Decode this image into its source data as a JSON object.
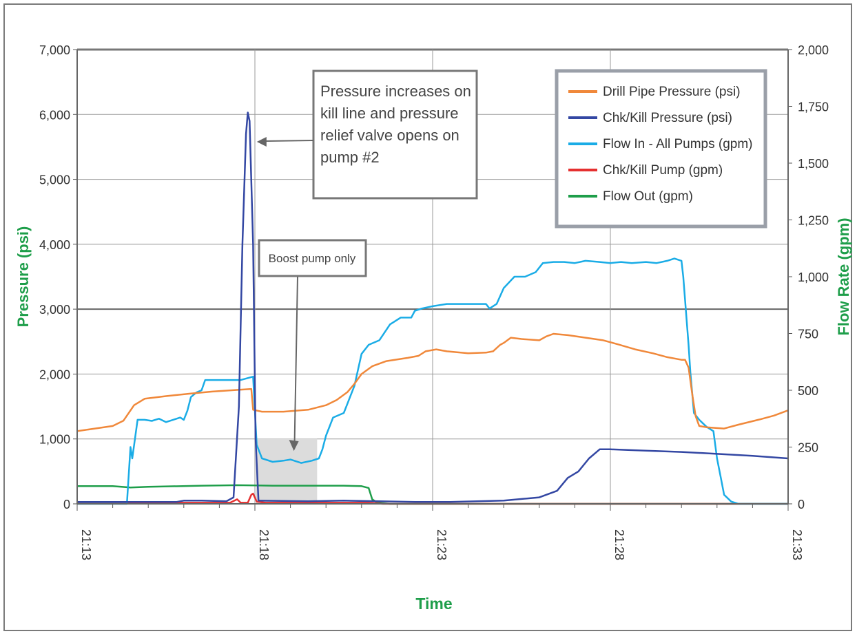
{
  "chart_data": {
    "type": "line",
    "title": "",
    "xlabel": "Time",
    "ylabel_left": "Pressure (psi)",
    "ylabel_right": "Flow Rate (gpm)",
    "x_ticks": [
      "21:13",
      "21:18",
      "21:23",
      "21:28",
      "21:33"
    ],
    "x_range_minutes": [
      0,
      20
    ],
    "left_axis": {
      "ylim": [
        0,
        7000
      ],
      "ticks": [
        "0",
        "1,000",
        "2,000",
        "3,000",
        "4,000",
        "5,000",
        "6,000",
        "7,000"
      ]
    },
    "right_axis": {
      "ylim": [
        0,
        2000
      ],
      "ticks": [
        "0",
        "250",
        "500",
        "750",
        "1,000",
        "1,250",
        "1,500",
        "1,750",
        "2,000"
      ]
    },
    "grid": true,
    "legend_position": "top-right",
    "series": [
      {
        "name": "Drill Pipe Pressure (psi)",
        "axis": "left",
        "color": "#f0883a",
        "points": [
          [
            0,
            1120
          ],
          [
            0.5,
            1160
          ],
          [
            1.0,
            1200
          ],
          [
            1.3,
            1280
          ],
          [
            1.6,
            1520
          ],
          [
            1.9,
            1620
          ],
          [
            2.5,
            1660
          ],
          [
            3.2,
            1700
          ],
          [
            3.8,
            1730
          ],
          [
            4.6,
            1760
          ],
          [
            4.9,
            1770
          ],
          [
            4.95,
            1450
          ],
          [
            5.2,
            1420
          ],
          [
            5.8,
            1420
          ],
          [
            6.5,
            1450
          ],
          [
            7.0,
            1520
          ],
          [
            7.3,
            1600
          ],
          [
            7.6,
            1720
          ],
          [
            7.8,
            1850
          ],
          [
            8.0,
            2000
          ],
          [
            8.3,
            2120
          ],
          [
            8.7,
            2200
          ],
          [
            9.3,
            2250
          ],
          [
            9.6,
            2280
          ],
          [
            9.8,
            2350
          ],
          [
            10.1,
            2380
          ],
          [
            10.4,
            2350
          ],
          [
            11.0,
            2320
          ],
          [
            11.5,
            2330
          ],
          [
            11.7,
            2350
          ],
          [
            11.9,
            2450
          ],
          [
            12.0,
            2480
          ],
          [
            12.2,
            2560
          ],
          [
            12.5,
            2540
          ],
          [
            13.0,
            2520
          ],
          [
            13.2,
            2580
          ],
          [
            13.4,
            2620
          ],
          [
            13.8,
            2600
          ],
          [
            14.3,
            2560
          ],
          [
            14.8,
            2520
          ],
          [
            15.2,
            2460
          ],
          [
            15.7,
            2380
          ],
          [
            16.2,
            2320
          ],
          [
            16.6,
            2260
          ],
          [
            17.0,
            2220
          ],
          [
            17.1,
            2220
          ],
          [
            17.2,
            2100
          ],
          [
            17.3,
            1700
          ],
          [
            17.4,
            1350
          ],
          [
            17.5,
            1200
          ],
          [
            17.7,
            1180
          ],
          [
            18.2,
            1160
          ],
          [
            18.6,
            1220
          ],
          [
            19.2,
            1300
          ],
          [
            19.6,
            1360
          ],
          [
            20,
            1440
          ]
        ]
      },
      {
        "name": "Chk/Kill Pressure (psi)",
        "axis": "left",
        "color": "#3347a3",
        "points": [
          [
            0,
            30
          ],
          [
            2.8,
            30
          ],
          [
            3.0,
            50
          ],
          [
            3.5,
            50
          ],
          [
            4.2,
            40
          ],
          [
            4.4,
            100
          ],
          [
            4.55,
            1500
          ],
          [
            4.65,
            4000
          ],
          [
            4.75,
            5700
          ],
          [
            4.8,
            6030
          ],
          [
            4.85,
            5900
          ],
          [
            4.95,
            4000
          ],
          [
            5.02,
            1000
          ],
          [
            5.1,
            50
          ],
          [
            6.5,
            40
          ],
          [
            7.5,
            50
          ],
          [
            8.5,
            40
          ],
          [
            9.5,
            30
          ],
          [
            10.5,
            30
          ],
          [
            12.0,
            50
          ],
          [
            13.0,
            100
          ],
          [
            13.5,
            200
          ],
          [
            13.8,
            400
          ],
          [
            14.1,
            500
          ],
          [
            14.4,
            700
          ],
          [
            14.7,
            840
          ],
          [
            15.0,
            840
          ],
          [
            16.0,
            820
          ],
          [
            17.0,
            800
          ],
          [
            18.0,
            770
          ],
          [
            19.0,
            740
          ],
          [
            20,
            700
          ]
        ]
      },
      {
        "name": "Flow In - All Pumps (gpm)",
        "axis": "right",
        "color": "#1aace6",
        "points": [
          [
            0,
            0
          ],
          [
            1.4,
            0
          ],
          [
            1.5,
            250
          ],
          [
            1.55,
            200
          ],
          [
            1.7,
            370
          ],
          [
            1.9,
            370
          ],
          [
            2.1,
            365
          ],
          [
            2.3,
            375
          ],
          [
            2.5,
            360
          ],
          [
            2.7,
            370
          ],
          [
            2.9,
            380
          ],
          [
            3.0,
            370
          ],
          [
            3.1,
            410
          ],
          [
            3.2,
            470
          ],
          [
            3.35,
            490
          ],
          [
            3.5,
            500
          ],
          [
            3.6,
            545
          ],
          [
            3.8,
            545
          ],
          [
            4.2,
            545
          ],
          [
            4.6,
            545
          ],
          [
            4.95,
            560
          ],
          [
            5.05,
            260
          ],
          [
            5.2,
            200
          ],
          [
            5.5,
            185
          ],
          [
            5.8,
            190
          ],
          [
            6.0,
            195
          ],
          [
            6.3,
            180
          ],
          [
            6.6,
            190
          ],
          [
            6.8,
            200
          ],
          [
            6.9,
            240
          ],
          [
            7.0,
            300
          ],
          [
            7.2,
            380
          ],
          [
            7.5,
            400
          ],
          [
            7.6,
            440
          ],
          [
            7.8,
            520
          ],
          [
            8.0,
            660
          ],
          [
            8.2,
            700
          ],
          [
            8.5,
            720
          ],
          [
            8.8,
            790
          ],
          [
            9.1,
            820
          ],
          [
            9.4,
            820
          ],
          [
            9.5,
            850
          ],
          [
            9.7,
            860
          ],
          [
            10.0,
            870
          ],
          [
            10.4,
            880
          ],
          [
            11.0,
            880
          ],
          [
            11.5,
            880
          ],
          [
            11.6,
            860
          ],
          [
            11.8,
            880
          ],
          [
            12.0,
            950
          ],
          [
            12.3,
            1000
          ],
          [
            12.6,
            1000
          ],
          [
            12.9,
            1020
          ],
          [
            13.1,
            1060
          ],
          [
            13.4,
            1065
          ],
          [
            13.7,
            1065
          ],
          [
            14.0,
            1060
          ],
          [
            14.3,
            1070
          ],
          [
            14.7,
            1065
          ],
          [
            15.0,
            1060
          ],
          [
            15.3,
            1065
          ],
          [
            15.6,
            1060
          ],
          [
            16.0,
            1065
          ],
          [
            16.3,
            1060
          ],
          [
            16.6,
            1070
          ],
          [
            16.8,
            1080
          ],
          [
            17.0,
            1070
          ],
          [
            17.05,
            1000
          ],
          [
            17.2,
            700
          ],
          [
            17.25,
            580
          ],
          [
            17.35,
            400
          ],
          [
            17.5,
            370
          ],
          [
            17.7,
            340
          ],
          [
            17.9,
            320
          ],
          [
            18.0,
            200
          ],
          [
            18.1,
            120
          ],
          [
            18.2,
            40
          ],
          [
            18.4,
            10
          ],
          [
            18.6,
            0
          ],
          [
            20,
            0
          ]
        ]
      },
      {
        "name": "Chk/Kill Pump (gpm)",
        "axis": "right",
        "color": "#e53030",
        "points": [
          [
            0,
            5
          ],
          [
            3.5,
            5
          ],
          [
            4.3,
            5
          ],
          [
            4.5,
            20
          ],
          [
            4.6,
            5
          ],
          [
            4.8,
            5
          ],
          [
            4.9,
            40
          ],
          [
            4.95,
            45
          ],
          [
            5.05,
            10
          ],
          [
            5.3,
            5
          ],
          [
            8.2,
            5
          ],
          [
            8.6,
            0
          ],
          [
            20,
            0
          ]
        ]
      },
      {
        "name": "Flow Out (gpm)",
        "axis": "right",
        "color": "#1e9e4a",
        "points": [
          [
            0,
            78
          ],
          [
            1.0,
            78
          ],
          [
            1.5,
            72
          ],
          [
            2.0,
            75
          ],
          [
            3.5,
            80
          ],
          [
            4.5,
            82
          ],
          [
            5.5,
            80
          ],
          [
            6.5,
            80
          ],
          [
            7.5,
            80
          ],
          [
            8.0,
            78
          ],
          [
            8.2,
            70
          ],
          [
            8.3,
            20
          ],
          [
            8.45,
            5
          ],
          [
            8.8,
            0
          ],
          [
            20,
            0
          ]
        ]
      }
    ],
    "annotations": [
      {
        "id": "relief",
        "lines": [
          "Pressure increases on",
          "kill line and pressure",
          "relief valve opens on",
          "pump #2"
        ],
        "arrow_to": [
          4.9,
          5750
        ]
      },
      {
        "id": "boost",
        "text": "Boost pump only",
        "arrow_to": [
          6.0,
          900
        ]
      }
    ],
    "shaded_region": {
      "x": [
        5.0,
        6.75
      ],
      "y_left": [
        0,
        1000
      ],
      "color": "#dcdcdc"
    },
    "box_color": "#777777"
  }
}
